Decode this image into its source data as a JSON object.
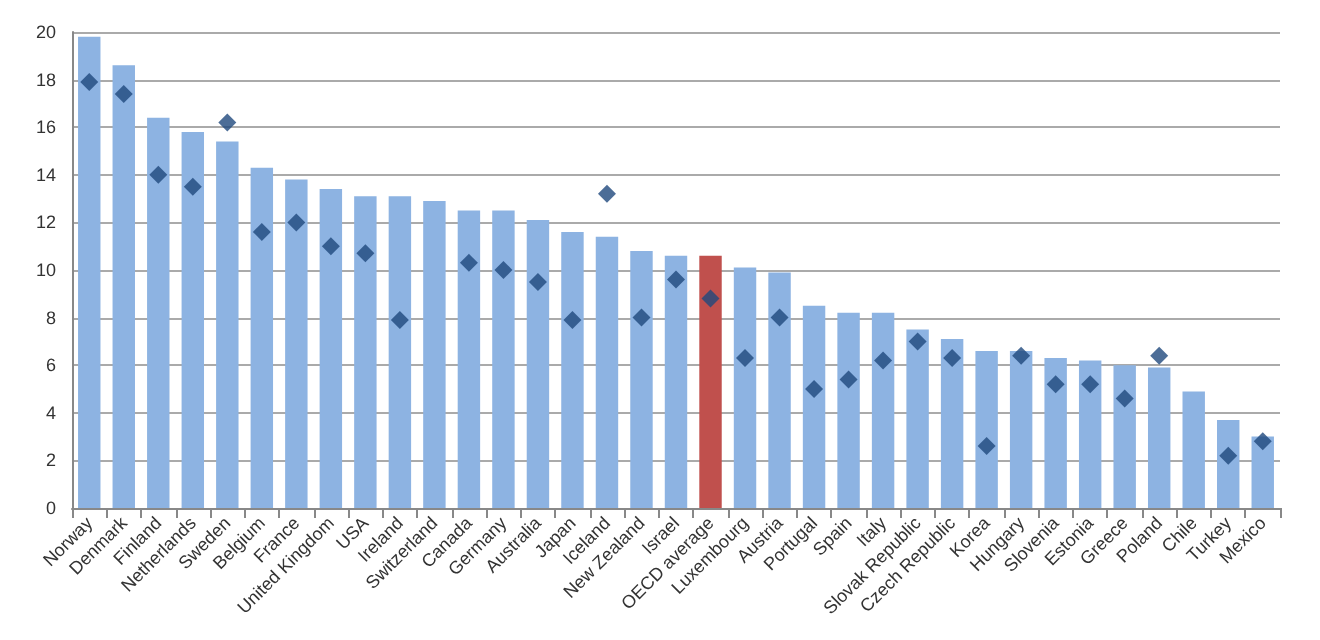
{
  "chart_data": {
    "type": "bar",
    "categories": [
      "Norway",
      "Denmark",
      "Finland",
      "Netherlands",
      "Sweden",
      "Belgium",
      "France",
      "United Kingdom",
      "USA",
      "Ireland",
      "Switzerland",
      "Canada",
      "Germany",
      "Australia",
      "Japan",
      "Iceland",
      "New Zealand",
      "Israel",
      "OECD average",
      "Luxembourg",
      "Austria",
      "Portugal",
      "Spain",
      "Italy",
      "Slovak Republic",
      "Czech Republic",
      "Korea",
      "Hungary",
      "Slovenia",
      "Estonia",
      "Greece",
      "Poland",
      "Chile",
      "Turkey",
      "Mexico"
    ],
    "series": [
      {
        "color": "#8db3e2",
        "colors": [
          "#8db3e2",
          "#8db3e2",
          "#8db3e2",
          "#8db3e2",
          "#8db3e2",
          "#8db3e2",
          "#8db3e2",
          "#8db3e2",
          "#8db3e2",
          "#8db3e2",
          "#8db3e2",
          "#8db3e2",
          "#8db3e2",
          "#8db3e2",
          "#8db3e2",
          "#8db3e2",
          "#8db3e2",
          "#8db3e2",
          "#c0504d",
          "#8db3e2",
          "#8db3e2",
          "#8db3e2",
          "#8db3e2",
          "#8db3e2",
          "#8db3e2",
          "#8db3e2",
          "#8db3e2",
          "#8db3e2",
          "#8db3e2",
          "#8db3e2",
          "#8db3e2",
          "#8db3e2",
          "#8db3e2",
          "#8db3e2",
          "#8db3e2"
        ],
        "values": [
          19.8,
          18.6,
          16.4,
          15.8,
          15.4,
          14.3,
          13.8,
          13.4,
          13.1,
          13.1,
          12.9,
          12.5,
          12.5,
          12.1,
          11.6,
          11.4,
          10.8,
          10.6,
          10.6,
          10.1,
          9.9,
          8.5,
          8.2,
          8.2,
          7.5,
          7.1,
          6.6,
          6.6,
          6.3,
          6.2,
          6.0,
          5.9,
          4.9,
          3.7,
          3.0
        ]
      },
      {
        "type": "scatter",
        "color": "#1f497d",
        "marker": "diamond",
        "values": [
          17.9,
          17.4,
          14.0,
          13.5,
          16.2,
          11.6,
          12.0,
          11.0,
          10.7,
          7.9,
          null,
          10.3,
          10.0,
          9.5,
          7.9,
          13.2,
          8.0,
          9.6,
          8.8,
          6.3,
          8.0,
          5.0,
          5.4,
          6.2,
          7.0,
          6.3,
          2.6,
          6.4,
          5.2,
          5.2,
          4.6,
          6.4,
          null,
          2.2,
          2.8
        ]
      }
    ],
    "ylim": [
      0,
      20
    ],
    "yticks": [
      0,
      2,
      4,
      6,
      8,
      10,
      12,
      14,
      16,
      18,
      20
    ],
    "grid": "y"
  }
}
